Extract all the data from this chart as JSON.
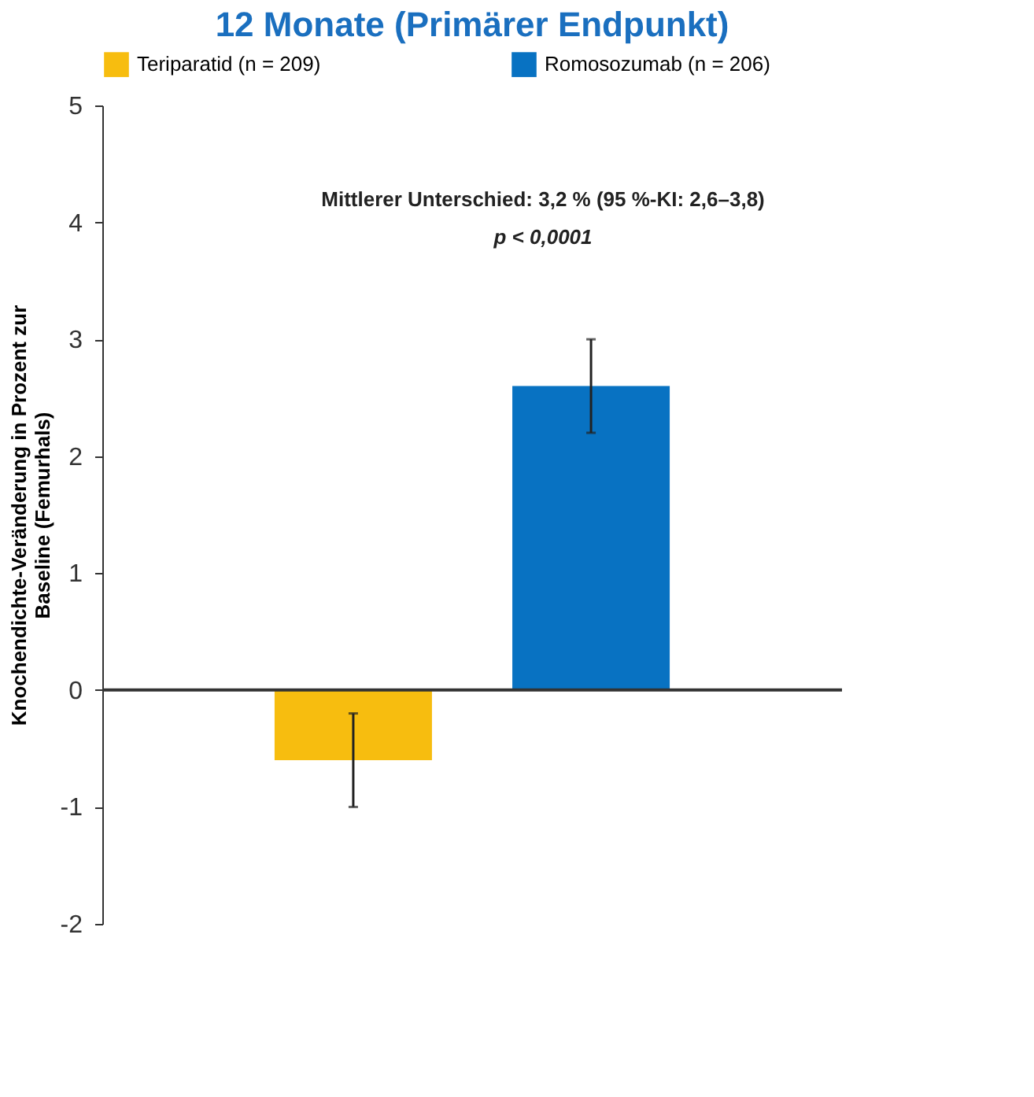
{
  "chart_data": {
    "type": "bar",
    "title": "12 Monate (Primärer Endpunkt)",
    "ylabel": "Knochendichte-Veränderung in Prozent zur\nBaseline (Femurhals)",
    "categories": [
      null
    ],
    "series": [
      {
        "name": "Teriparatid (n = 209)",
        "color": "#f7bd0f",
        "values": [
          -0.6
        ],
        "errors": [
          [
            -1.0,
            -0.2
          ]
        ]
      },
      {
        "name": "Romosozumab (n = 206)",
        "color": "#0872c2",
        "values": [
          2.6
        ],
        "errors": [
          [
            2.2,
            3.0
          ]
        ]
      }
    ],
    "ylim": [
      -2,
      5
    ],
    "yticks": [
      -2,
      -1,
      0,
      1,
      2,
      3,
      4,
      5
    ],
    "annotations": [
      "Mittlerer Unterschied: 3,2 % (95 %-KI: 2,6–3,8)",
      "p < 0,0001"
    ],
    "ref_lines": [
      {
        "axis": "y",
        "value": 0,
        "color": "#333333"
      }
    ],
    "legend": "top",
    "grid": false,
    "tick_labels": "y"
  }
}
